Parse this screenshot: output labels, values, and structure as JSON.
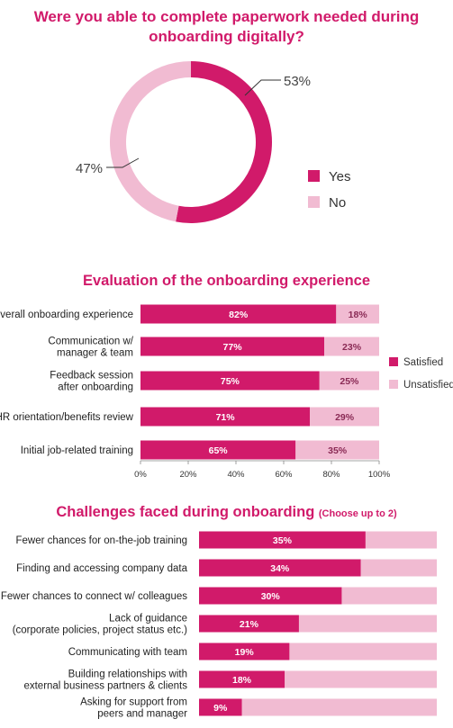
{
  "colors": {
    "primary": "#d11a6a",
    "secondary": "#f1bbd2",
    "title": "#d11a6a"
  },
  "chart_data": [
    {
      "type": "pie",
      "title": "Were you able to complete paperwork needed during onboarding digitally?",
      "categories": [
        "Yes",
        "No"
      ],
      "values": [
        53,
        47
      ],
      "value_labels": [
        "53%",
        "47%"
      ],
      "legend": "right"
    },
    {
      "type": "bar",
      "orientation": "horizontal",
      "stacked": true,
      "title": "Evaluation of the onboarding experience",
      "categories": [
        "Overall onboarding experience",
        "Communication w/\nmanager & team",
        "Feedback session\nafter onboarding",
        "HR orientation/benefits review",
        "Initial job-related training"
      ],
      "series": [
        {
          "name": "Satisfied",
          "values": [
            82,
            77,
            75,
            71,
            65
          ],
          "labels": [
            "82%",
            "77%",
            "75%",
            "71%",
            "65%"
          ]
        },
        {
          "name": "Unsatisfied",
          "values": [
            18,
            23,
            25,
            29,
            35
          ],
          "labels": [
            "18%",
            "23%",
            "25%",
            "29%",
            "35%"
          ]
        }
      ],
      "xlim": [
        0,
        100
      ],
      "xticks": [
        "0%",
        "20%",
        "40%",
        "60%",
        "80%",
        "100%"
      ],
      "legend": "right"
    },
    {
      "type": "bar",
      "orientation": "horizontal",
      "title": "Challenges faced during onboarding",
      "subtitle": "(Choose up to 2)",
      "categories": [
        "Fewer chances for on-the-job training",
        "Finding and accessing company data",
        "Fewer chances to connect w/ colleagues",
        "Lack of guidance\n(corporate policies, project status etc.)",
        "Communicating with team",
        "Building relationships with\nexternal business partners & clients",
        "Asking for support from\npeers and manager"
      ],
      "values": [
        35,
        34,
        30,
        21,
        19,
        18,
        9
      ],
      "labels": [
        "35%",
        "34%",
        "30%",
        "21%",
        "19%",
        "18%",
        "9%"
      ],
      "xlim": [
        0,
        50
      ]
    }
  ]
}
